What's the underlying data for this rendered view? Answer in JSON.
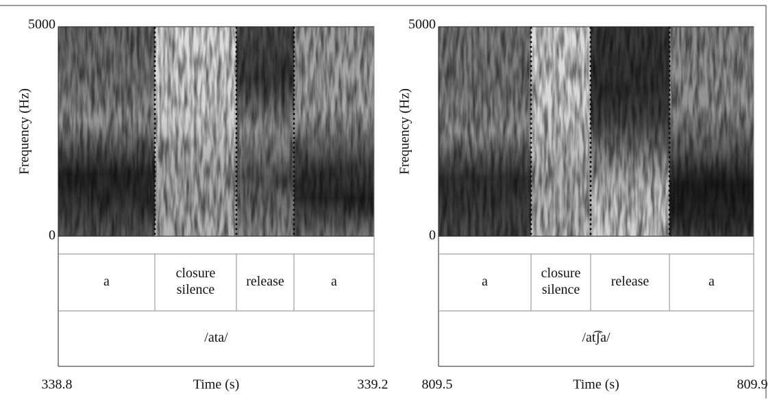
{
  "panels": [
    {
      "y_max": "5000",
      "y_min": "0",
      "y_label": "Frequency (Hz)",
      "segments": [
        [
          "a"
        ],
        [
          "closure",
          "silence"
        ],
        [
          "release"
        ],
        [
          "a"
        ]
      ],
      "word": "/ata/",
      "time_start": "338.8",
      "time_end": "339.2",
      "x_label": "Time (s)"
    },
    {
      "y_max": "5000",
      "y_min": "0",
      "y_label": "Frequency (Hz)",
      "segments": [
        [
          "a"
        ],
        [
          "closure",
          "silence"
        ],
        [
          "release"
        ],
        [
          "a"
        ]
      ],
      "word": "/at͡ʃa/",
      "time_start": "809.5",
      "time_end": "809.9",
      "x_label": "Time (s)"
    }
  ]
}
